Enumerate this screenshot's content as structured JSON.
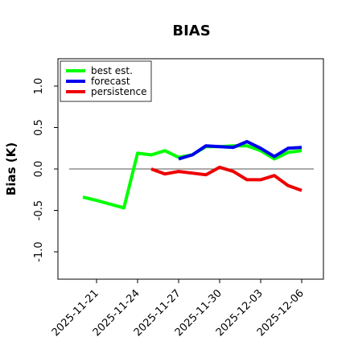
{
  "chart_data": {
    "type": "line",
    "title": "BIAS",
    "ylabel": "Bias (K)",
    "xlabel": "",
    "ylim": [
      -1.35,
      1.35
    ],
    "y_ticks": [
      -1.0,
      -0.5,
      0.0,
      0.5,
      1.0
    ],
    "y_tick_labels": [
      "-1.0",
      "-0.5",
      "0.0",
      "0.5",
      "1.0"
    ],
    "x_ticks": [
      "2025-11-21",
      "2025-11-24",
      "2025-11-27",
      "2025-11-30",
      "2025-12-03",
      "2025-12-06"
    ],
    "x_tick_colors": [
      "#000000",
      "#000000",
      "#228B22",
      "#000000",
      "#000000",
      "#000000"
    ],
    "reference_line": 0.0,
    "legend_position": "top-left",
    "grid": false,
    "series": [
      {
        "name": "best est.",
        "color": "#00ff00",
        "points": [
          [
            "2025-11-20",
            -0.34
          ],
          [
            "2025-11-21",
            -0.38
          ],
          [
            "2025-11-23",
            -0.47
          ],
          [
            "2025-11-24",
            0.19
          ],
          [
            "2025-11-25",
            0.17
          ],
          [
            "2025-11-26",
            0.22
          ],
          [
            "2025-11-27",
            0.14
          ],
          [
            "2025-11-28",
            0.17
          ],
          [
            "2025-11-29",
            0.27
          ],
          [
            "2025-11-30",
            0.27
          ],
          [
            "2025-12-01",
            0.28
          ],
          [
            "2025-12-02",
            0.28
          ],
          [
            "2025-12-03",
            0.22
          ],
          [
            "2025-12-04",
            0.12
          ],
          [
            "2025-12-05",
            0.2
          ],
          [
            "2025-12-06",
            0.22
          ]
        ]
      },
      {
        "name": "forecast",
        "color": "#0000ee",
        "points": [
          [
            "2025-11-27",
            0.12
          ],
          [
            "2025-11-28",
            0.17
          ],
          [
            "2025-11-29",
            0.28
          ],
          [
            "2025-11-30",
            0.27
          ],
          [
            "2025-12-01",
            0.26
          ],
          [
            "2025-12-02",
            0.33
          ],
          [
            "2025-12-03",
            0.25
          ],
          [
            "2025-12-04",
            0.15
          ],
          [
            "2025-12-05",
            0.25
          ],
          [
            "2025-12-06",
            0.26
          ]
        ]
      },
      {
        "name": "persistence",
        "color": "#ee0000",
        "points": [
          [
            "2025-11-25",
            0.0
          ],
          [
            "2025-11-26",
            -0.06
          ],
          [
            "2025-11-27",
            -0.03
          ],
          [
            "2025-11-28",
            -0.05
          ],
          [
            "2025-11-29",
            -0.07
          ],
          [
            "2025-11-30",
            0.02
          ],
          [
            "2025-12-01",
            -0.03
          ],
          [
            "2025-12-02",
            -0.13
          ],
          [
            "2025-12-03",
            -0.13
          ],
          [
            "2025-12-04",
            -0.08
          ],
          [
            "2025-12-05",
            -0.2
          ],
          [
            "2025-12-06",
            -0.26
          ]
        ]
      }
    ]
  }
}
